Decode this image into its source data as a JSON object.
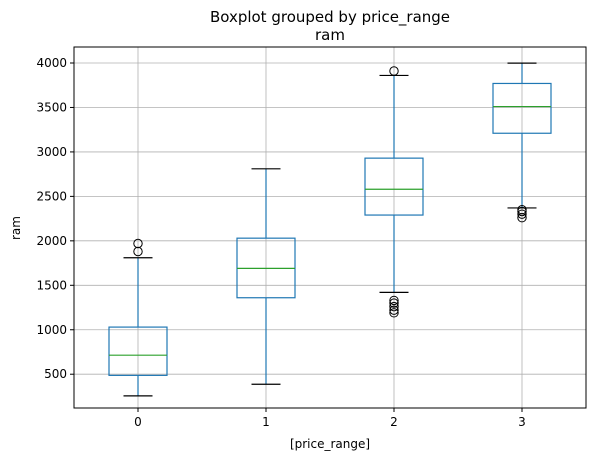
{
  "chart_data": {
    "type": "box",
    "title": "Boxplot grouped by price_range",
    "subtitle": "ram",
    "xlabel": "[price_range]",
    "ylabel": "ram",
    "categories": [
      "0",
      "1",
      "2",
      "3"
    ],
    "ylim": [
      120,
      4180
    ],
    "yticks": [
      500,
      1000,
      1500,
      2000,
      2500,
      3000,
      3500,
      4000
    ],
    "ytick_labels": [
      "500",
      "1000",
      "1500",
      "2000",
      "2500",
      "3000",
      "3500",
      "4000"
    ],
    "grid": true,
    "colors": {
      "box": "#1f77b4",
      "median": "#2ca02c",
      "cap": "#000000",
      "flier": "#000000"
    },
    "boxes": [
      {
        "category": "0",
        "whisker_low": 256,
        "q1": 487,
        "median": 714,
        "q3": 1030,
        "whisker_high": 1810,
        "fliers": [
          1880,
          1970
        ]
      },
      {
        "category": "1",
        "whisker_low": 387,
        "q1": 1360,
        "median": 1690,
        "q3": 2030,
        "whisker_high": 2810,
        "fliers": []
      },
      {
        "category": "2",
        "whisker_low": 1420,
        "q1": 2290,
        "median": 2580,
        "q3": 2930,
        "whisker_high": 3860,
        "fliers": [
          1190,
          1220,
          1260,
          1300,
          1330,
          3910
        ]
      },
      {
        "category": "3",
        "whisker_low": 2370,
        "q1": 3210,
        "median": 3510,
        "q3": 3770,
        "whisker_high": 3999,
        "fliers": [
          2260,
          2300,
          2330,
          2350
        ]
      }
    ]
  }
}
